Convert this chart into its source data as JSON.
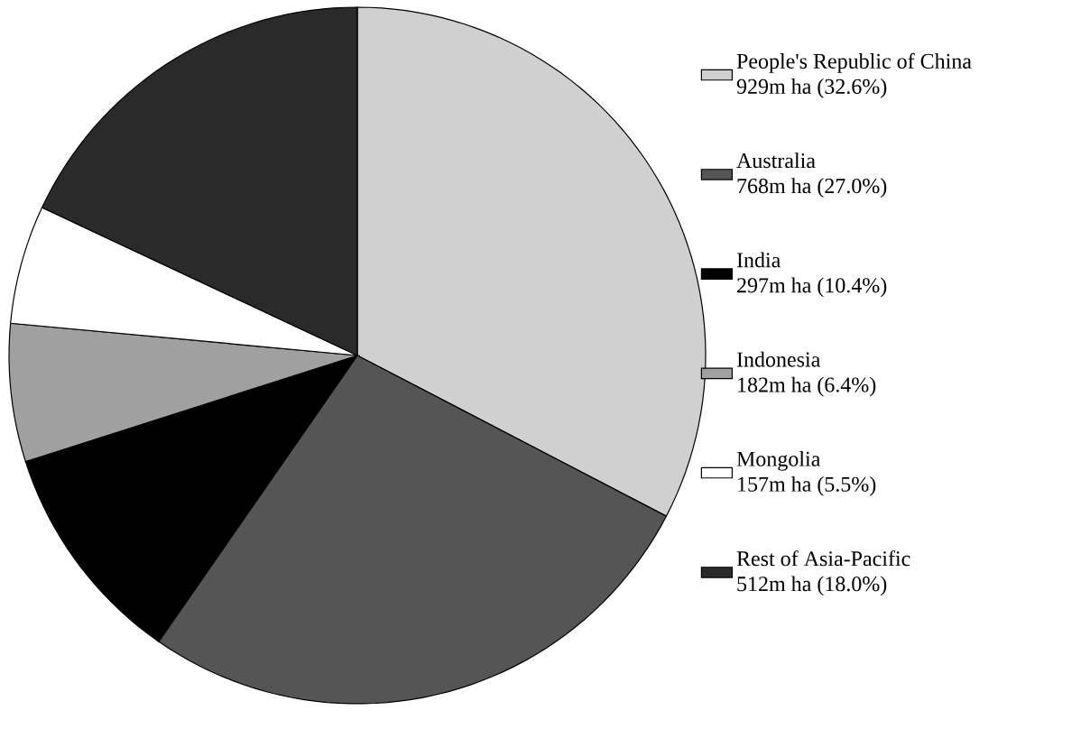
{
  "chart_data": {
    "type": "pie",
    "categories": [
      "People's Republic of China",
      "Australia",
      "India",
      "Indonesia",
      "Mongolia",
      "Rest of Asia-Pacific"
    ],
    "values": [
      32.6,
      27.0,
      10.4,
      6.4,
      5.5,
      18.0
    ],
    "value_labels": [
      "929m ha (32.6%)",
      "768m ha (27.0%)",
      "297m ha (10.4%)",
      "182m ha (6.4%)",
      "157m ha (5.5%)",
      "512m ha (18.0%)"
    ],
    "colors": [
      "#d0d0d0",
      "#555555",
      "#000000",
      "#a0a0a0",
      "#ffffff",
      "#2a2a2a"
    ],
    "legend": "right"
  }
}
